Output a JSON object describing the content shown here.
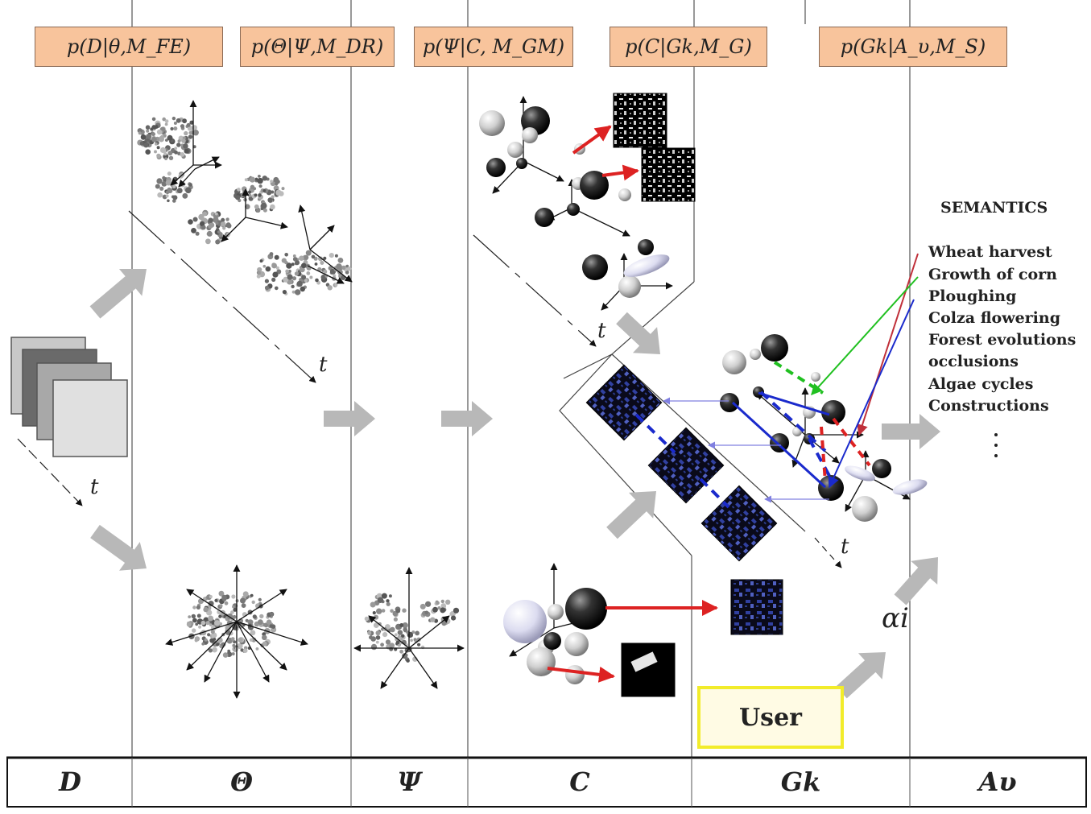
{
  "probabilities": [
    "p(D|θ,M_FE)",
    "p(Θ|Ψ,M_DR)",
    "p(Ψ|C, M_GM)",
    "p(C|Gk,M_G)",
    "p(Gk|A_υ,M_S)"
  ],
  "semantics": {
    "title": "SEMANTICS",
    "items": [
      "Wheat harvest",
      "Growth of corn",
      "Ploughing",
      "Colza flowering",
      "Forest evolutions",
      "occlusions",
      "Algae cycles",
      "Constructions"
    ],
    "link_colors": [
      "#c0303a",
      "#20c020",
      "#1a2acc"
    ]
  },
  "user_label": "User",
  "alpha_label": "αi",
  "time_label": "t",
  "columns": [
    "D",
    "Θ",
    "Ψ",
    "C",
    "Gk",
    "Aυ"
  ],
  "colors": {
    "box_fill": "#f8c49c",
    "user_border": "#f2ec2a",
    "arrow_gray": "#b8b8b8",
    "red_arrow": "#dd2222",
    "blue_link": "#1a2acc"
  }
}
